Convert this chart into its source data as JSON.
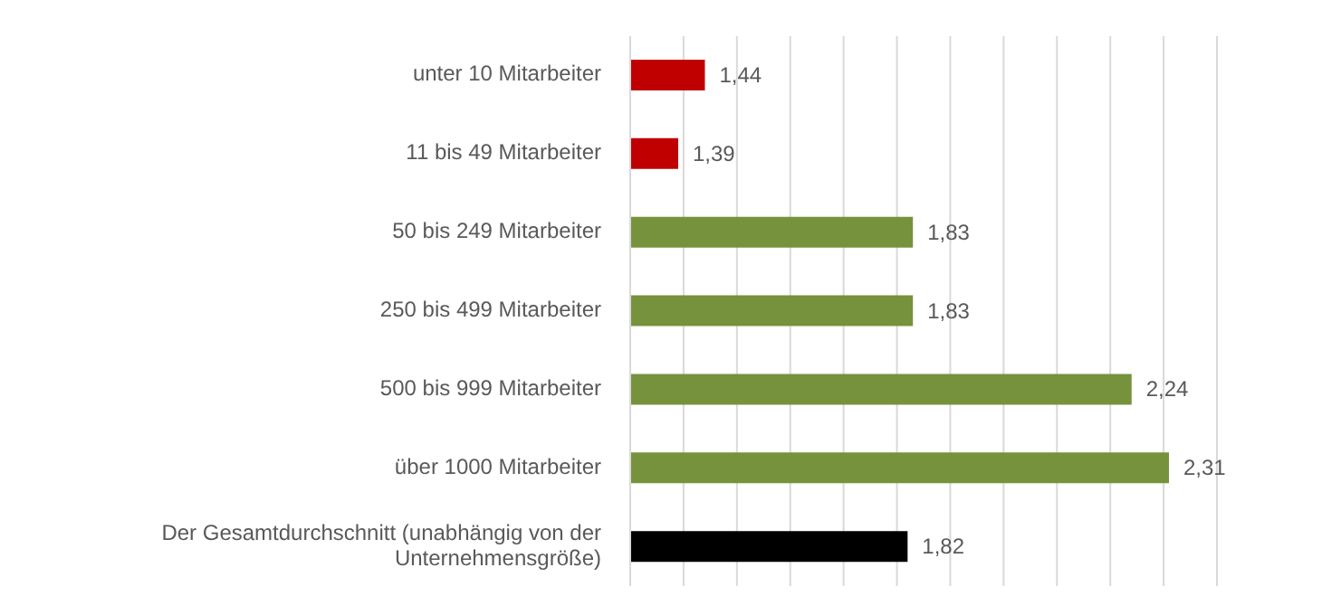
{
  "chart_data": {
    "type": "bar",
    "orientation": "horizontal",
    "categories": [
      "unter 10 Mitarbeiter",
      "11 bis 49 Mitarbeiter",
      "50 bis 249 Mitarbeiter",
      "250 bis 499 Mitarbeiter",
      "500 bis 999 Mitarbeiter",
      "über 1000 Mitarbeiter",
      "Der Gesamtdurchschnitt (unabhängig von der Unternehmensgröße)"
    ],
    "values": [
      1.44,
      1.39,
      1.83,
      1.83,
      2.24,
      2.31,
      1.82
    ],
    "colors": [
      "#c00000",
      "#c00000",
      "#76923c",
      "#76923c",
      "#76923c",
      "#76923c",
      "#000000"
    ],
    "value_labels": [
      "1,44",
      "1,39",
      "1,83",
      "1,83",
      "2,24",
      "2,31",
      "1,82"
    ],
    "xlim": [
      1.3,
      2.4
    ],
    "xticks": [
      {
        "value": 1.3,
        "label": null
      },
      {
        "value": 1.4,
        "label": null
      },
      {
        "value": 1.5,
        "label": null
      },
      {
        "value": 1.6,
        "label": null
      },
      {
        "value": 1.7,
        "label": null
      },
      {
        "value": 1.8,
        "label": null
      },
      {
        "value": 1.9,
        "label": null
      },
      {
        "value": 2.0,
        "label": null
      },
      {
        "value": 2.1,
        "label": null
      },
      {
        "value": 2.2,
        "label": null
      },
      {
        "value": 2.3,
        "label": null
      },
      {
        "value": 2.4,
        "label": null
      }
    ],
    "grid": "x",
    "tick_labels": "y",
    "legend": false
  }
}
